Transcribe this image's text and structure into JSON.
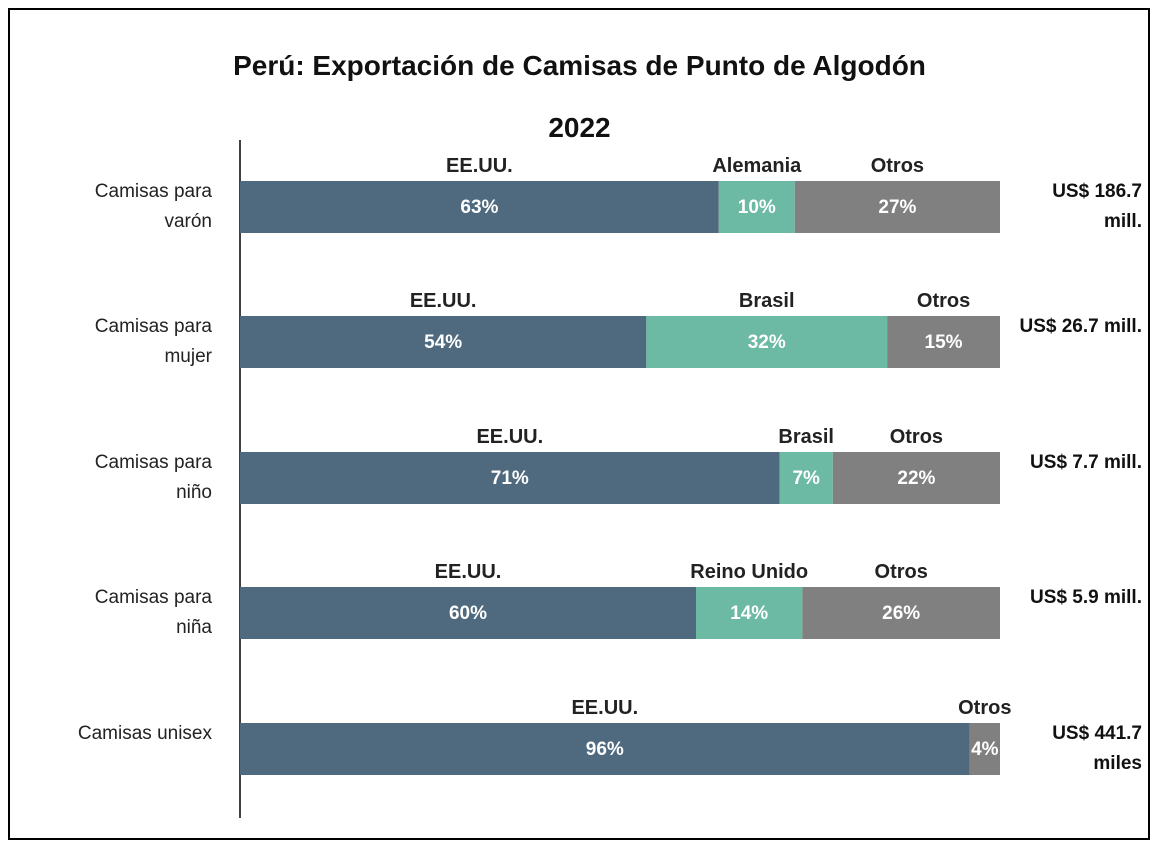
{
  "chart_data": {
    "type": "stacked-bar-100",
    "title": "Perú: Exportación de Camisas de Punto de Algodón",
    "subtitle": "2022",
    "colors": [
      "#4f6a7e",
      "#6cb9a4",
      "#808080"
    ],
    "rows": [
      {
        "category": "Camisas para varón",
        "total": "US$ 186.7 mill.",
        "segments": [
          {
            "name": "EE.UU.",
            "value": 63,
            "value_label": "63%"
          },
          {
            "name": "Alemania",
            "value": 10,
            "value_label": "10%"
          },
          {
            "name": "Otros",
            "value": 27,
            "value_label": "27%"
          }
        ]
      },
      {
        "category": "Camisas para mujer",
        "total": "US$ 26.7 mill.",
        "segments": [
          {
            "name": "EE.UU.",
            "value": 54,
            "value_label": "54%"
          },
          {
            "name": "Brasil",
            "value": 32,
            "value_label": "32%"
          },
          {
            "name": "Otros",
            "value": 15,
            "value_label": "15%"
          }
        ]
      },
      {
        "category": "Camisas para niño",
        "total": "US$ 7.7 mill.",
        "segments": [
          {
            "name": "EE.UU.",
            "value": 71,
            "value_label": "71%"
          },
          {
            "name": "Brasil",
            "value": 7,
            "value_label": "7%"
          },
          {
            "name": "Otros",
            "value": 22,
            "value_label": "22%"
          }
        ]
      },
      {
        "category": "Camisas para niña",
        "total": "US$ 5.9 mill.",
        "segments": [
          {
            "name": "EE.UU.",
            "value": 60,
            "value_label": "60%"
          },
          {
            "name": "Reino Unido",
            "value": 14,
            "value_label": "14%"
          },
          {
            "name": "Otros",
            "value": 26,
            "value_label": "26%"
          }
        ]
      },
      {
        "category": "Camisas unisex",
        "total": "US$ 441.7 miles",
        "segments": [
          {
            "name": "EE.UU.",
            "value": 96,
            "value_label": "96%"
          },
          {
            "name": "Otros",
            "value": 4,
            "value_label": "4%"
          }
        ]
      }
    ]
  }
}
